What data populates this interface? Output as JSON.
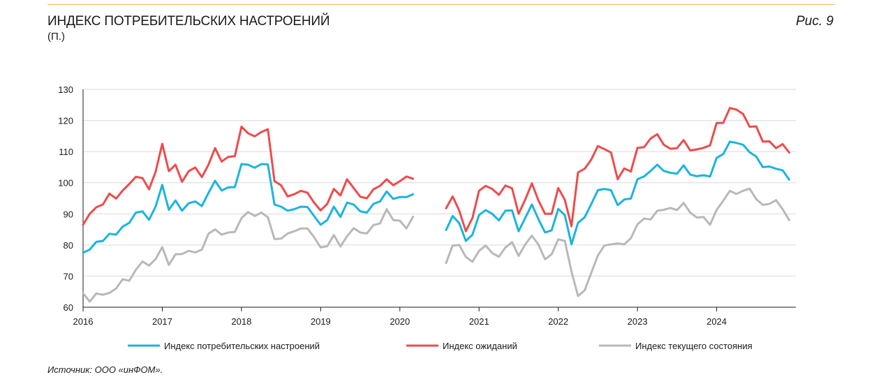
{
  "header": {
    "title": "ИНДЕКС ПОТРЕБИТЕЛЬСКИХ НАСТРОЕНИЙ",
    "subtitle": "(П.)",
    "figure_label": "Рис. 9"
  },
  "footer": {
    "source": "Источник: ООО «инФОМ»."
  },
  "colors": {
    "consumer": "#1bb4de",
    "expectations": "#ee4b4b",
    "current": "#b8b8b8",
    "grid": "#d9d9d9",
    "axis": "#1a1a1a",
    "rule": "#f0c24a"
  },
  "chart_data": {
    "type": "line",
    "title": "ИНДЕКС ПОТРЕБИТЕЛЬСКИХ НАСТРОЕНИЙ",
    "ylabel": "(П.)",
    "xlabel": "",
    "ylim": [
      60,
      130
    ],
    "yticks": [
      60,
      70,
      80,
      90,
      100,
      110,
      120,
      130
    ],
    "xlim": [
      "2016-01",
      "2024-12"
    ],
    "xticks": [
      "2016",
      "2017",
      "2018",
      "2019",
      "2020",
      "2021",
      "2022",
      "2023",
      "2024"
    ],
    "grid": "horizontal",
    "legend_position": "bottom",
    "gap": [
      "2020-04",
      "2020-08"
    ],
    "series": [
      {
        "name": "Индекс потребительских настроений",
        "color_key": "consumer",
        "segments": [
          {
            "start": "2016-01",
            "values": [
              77.5,
              78.5,
              81,
              81.3,
              83.6,
              83.3,
              85.9,
              87.1,
              90.4,
              90.8,
              88.1,
              92.4,
              99.3,
              91.3,
              94.3,
              91,
              93.4,
              94,
              92.5,
              96.7,
              100.6,
              97.5,
              98.5,
              98.6,
              106,
              105.8,
              104.8,
              106,
              105.9,
              93,
              92.3,
              91,
              91.5,
              92.3,
              92.2,
              89.3,
              86.5,
              88,
              92.3,
              89,
              93.6,
              93,
              90.8,
              90.4,
              93.2,
              94,
              97.2,
              94.8,
              95.4,
              95.4,
              96.3
            ]
          },
          {
            "start": "2020-08",
            "values": [
              84.8,
              89.3,
              87,
              81.3,
              83.3,
              89.6,
              91.2,
              90,
              87.9,
              91,
              91.1,
              84.4,
              88.7,
              93,
              88.3,
              84,
              84.7,
              91.6,
              89.6,
              80.2,
              87.1,
              88.9,
              93.1,
              97.6,
              98,
              97.6,
              92.8,
              94.6,
              94.9,
              101.1,
              102,
              103.8,
              105.8,
              103.8,
              103.2,
              102.9,
              105.6,
              102.6,
              102.1,
              102.4,
              102,
              108,
              109.2,
              113.2,
              112.8,
              112.2,
              109.8,
              108.4,
              105,
              105.2,
              104.5,
              104,
              101
            ]
          }
        ]
      },
      {
        "name": "Индекс ожиданий",
        "color_key": "expectations",
        "segments": [
          {
            "start": "2016-01",
            "values": [
              86.5,
              90,
              92.1,
              93,
              96.5,
              94.9,
              97.5,
              99.6,
              101.9,
              101.5,
              97.9,
              103.6,
              112.5,
              103.7,
              105.8,
              100.3,
              103.7,
              104.9,
              101.8,
              105.8,
              111.1,
              106.8,
              108.3,
              108.5,
              118,
              115.9,
              114.9,
              116.3,
              117.2,
              100.5,
              99.2,
              95.6,
              96.3,
              97.4,
              96.8,
              93.6,
              91.1,
              93.2,
              98,
              95.9,
              101.1,
              98.3,
              95.5,
              95,
              97.9,
              99,
              101.1,
              99.2,
              100.5,
              102,
              101.3
            ]
          },
          {
            "start": "2020-08",
            "values": [
              91.8,
              95.6,
              91,
              84.4,
              88.7,
              97.4,
              99,
              98,
              96.1,
              99.1,
              98.2,
              90,
              94.6,
              99.8,
              94.3,
              90,
              90,
              98.3,
              94.5,
              86,
              103.3,
              104.5,
              107.4,
              111.8,
              110.8,
              109.7,
              101.1,
              104.6,
              103.6,
              111.2,
              111.4,
              114.2,
              115.6,
              112.2,
              110.9,
              111.1,
              113.7,
              110.4,
              110.7,
              111.2,
              112,
              119.2,
              119.2,
              124,
              123.5,
              122.1,
              118,
              118.1,
              113.2,
              113.3,
              111.1,
              112.4,
              109.7
            ]
          }
        ]
      },
      {
        "name": "Индекс текущего состояния",
        "color_key": "current",
        "segments": [
          {
            "start": "2016-01",
            "values": [
              64.5,
              61.8,
              64.4,
              64,
              64.6,
              66,
              69,
              68.5,
              72,
              74.7,
              73.4,
              75.5,
              79.3,
              73.6,
              77,
              77.1,
              78.1,
              77.6,
              78.5,
              83.6,
              85,
              83.3,
              84,
              84.2,
              88.6,
              90.6,
              89.3,
              90.4,
              88.9,
              81.9,
              82,
              83.7,
              84.4,
              85.3,
              85.3,
              82.5,
              79.2,
              79.6,
              83.2,
              79.5,
              82.8,
              85.4,
              84,
              83.7,
              86.4,
              86.9,
              91.5,
              88,
              87.8,
              85.3,
              89.1
            ]
          },
          {
            "start": "2020-08",
            "values": [
              74.2,
              79.8,
              80,
              76.1,
              74.6,
              78.1,
              79.8,
              77.4,
              76.2,
              79.2,
              80.9,
              76.5,
              80.2,
              83,
              80.1,
              75.4,
              77,
              81.8,
              81.3,
              71.5,
              63.6,
              65.4,
              71,
              76.6,
              79.8,
              80.2,
              80.5,
              80.2,
              82.2,
              86.6,
              88.5,
              88.2,
              91,
              91.3,
              91.9,
              91.2,
              93.5,
              90.4,
              88.8,
              89,
              86.5,
              91.3,
              94.2,
              97.4,
              96.4,
              97.4,
              98.1,
              94.7,
              92.9,
              93.2,
              94.4,
              91.5,
              88
            ]
          }
        ]
      }
    ]
  }
}
